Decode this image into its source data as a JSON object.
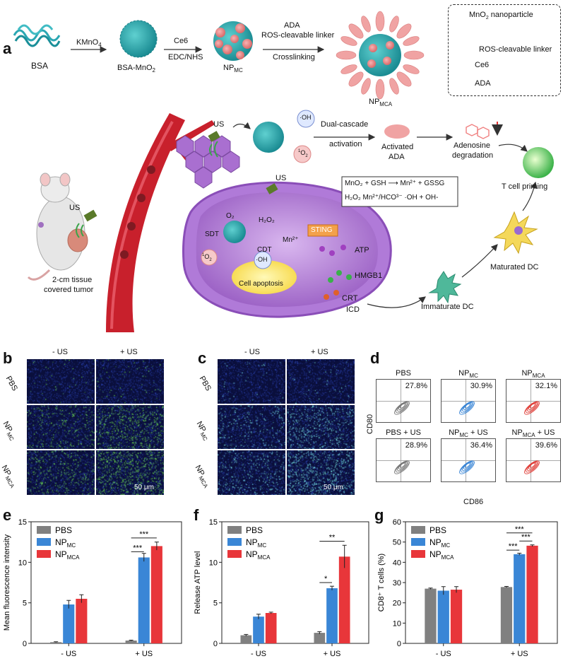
{
  "panels": {
    "a": "a",
    "b": "b",
    "c": "c",
    "d": "d",
    "e": "e",
    "f": "f",
    "g": "g"
  },
  "scheme": {
    "bsa": "BSA",
    "kmno4": "KMnO",
    "kmno4_sub": "4",
    "bsa_mno2": "BSA-MnO",
    "bsa_mno2_sub": "2",
    "ce6": "Ce6",
    "edc_nhs": "EDC/NHS",
    "np": "NP",
    "np_mc_sub": "MC",
    "np_mca_sub": "MCA",
    "ada": "ADA",
    "ros_linker": "ROS-cleavable linker",
    "crosslinking": "Crosslinking",
    "legend_mno2": "MnO",
    "legend_mno2_tail": " nanoparticle",
    "legend_linker": "ROS-cleavable linker",
    "legend_ce6": "Ce6",
    "legend_ada": "ADA",
    "us": "US",
    "oh": "·OH",
    "singlet_o2": "O",
    "dual_cascade": "Dual-cascade",
    "activation": "activation",
    "activated": "Activated",
    "adenosine": "Adenosine",
    "degradation": "degradation",
    "t_cell": "T cell priming",
    "eq1": "MnO₂ + GSH ⟶ Mn²⁺ + GSSG",
    "eq2": "H₂O₂  Mn²⁺/HCO³⁻ ·OH + OH-",
    "o2": "O₂",
    "h2o2": "H₂O₂",
    "sdt": "SDT",
    "cdt": "CDT",
    "mn2": "Mn²⁺",
    "sting": "STING",
    "atp": "ATP",
    "hmgb1": "HMGB1",
    "crt": "CRT",
    "icd": "ICD",
    "apoptosis": "Cell apoptosis",
    "matured_dc": "Maturated DC",
    "immature_dc": "Immaturate DC",
    "tissue1": "2-cm tissue",
    "tissue2": "covered tumor"
  },
  "micro_b": {
    "col1": "- US",
    "col2": "+ US",
    "rows": [
      "PBS",
      "NP",
      "NP"
    ],
    "row_subs": [
      "",
      "MC",
      "MCA"
    ],
    "scale": "50 μm"
  },
  "micro_c": {
    "col1": "- US",
    "col2": "+ US",
    "rows": [
      "PBS",
      "NP",
      "NP"
    ],
    "row_subs": [
      "",
      "MC",
      "MCA"
    ],
    "scale": "50 μm"
  },
  "flow": {
    "ylabel": "CD80",
    "xlabel": "CD86",
    "cells": [
      {
        "title": "PBS",
        "sub": "",
        "tail": "",
        "pct": "27.8%",
        "color": "#777777"
      },
      {
        "title": "NP",
        "sub": "MC",
        "tail": "",
        "pct": "30.9%",
        "color": "#3a86d6"
      },
      {
        "title": "NP",
        "sub": "MCA",
        "tail": "",
        "pct": "32.1%",
        "color": "#e0403a"
      },
      {
        "title": "PBS + US",
        "sub": "",
        "tail": "",
        "pct": "28.9%",
        "color": "#777777"
      },
      {
        "title": "NP",
        "sub": "MC",
        "tail": " + US",
        "pct": "36.4%",
        "color": "#3a86d6"
      },
      {
        "title": "NP",
        "sub": "MCA",
        "tail": " + US",
        "pct": "39.6%",
        "color": "#e0403a"
      }
    ]
  },
  "chart_data": [
    {
      "type": "bar",
      "panel": "e",
      "categories": [
        "- US",
        "+ US"
      ],
      "ylabel": "Mean fluorescence intensity",
      "ylim": [
        0,
        15
      ],
      "yticks": [
        0,
        5,
        10,
        15
      ],
      "series": [
        {
          "name": "PBS",
          "color": "#808080",
          "values": [
            0.15,
            0.35
          ],
          "errors": [
            0.05,
            0.05
          ]
        },
        {
          "name": "NP",
          "name_sub": "MC",
          "color": "#3a86d6",
          "values": [
            4.8,
            10.6
          ],
          "errors": [
            0.5,
            0.5
          ]
        },
        {
          "name": "NP",
          "name_sub": "MCA",
          "color": "#e8363a",
          "values": [
            5.5,
            12.0
          ],
          "errors": [
            0.5,
            0.5
          ]
        }
      ],
      "significance": [
        {
          "label": "***",
          "from": [
            1,
            0
          ],
          "to": [
            1,
            1
          ],
          "y": 11.3
        },
        {
          "label": "***",
          "from": [
            1,
            0
          ],
          "to": [
            1,
            2
          ],
          "y": 13.0
        }
      ]
    },
    {
      "type": "bar",
      "panel": "f",
      "categories": [
        "- US",
        "+ US"
      ],
      "ylabel": "Release ATP level",
      "ylim": [
        0,
        15
      ],
      "yticks": [
        0,
        5,
        10,
        15
      ],
      "series": [
        {
          "name": "PBS",
          "color": "#808080",
          "values": [
            1.0,
            1.3
          ],
          "errors": [
            0.1,
            0.15
          ]
        },
        {
          "name": "NP",
          "name_sub": "MC",
          "color": "#3a86d6",
          "values": [
            3.3,
            6.8
          ],
          "errors": [
            0.3,
            0.25
          ]
        },
        {
          "name": "NP",
          "name_sub": "MCA",
          "color": "#e8363a",
          "values": [
            3.75,
            10.7
          ],
          "errors": [
            0.1,
            1.4
          ]
        }
      ],
      "significance": [
        {
          "label": "*",
          "from": [
            1,
            0
          ],
          "to": [
            1,
            1
          ],
          "y": 7.5
        },
        {
          "label": "**",
          "from": [
            1,
            0
          ],
          "to": [
            1,
            2
          ],
          "y": 12.6
        }
      ]
    },
    {
      "type": "bar",
      "panel": "g",
      "categories": [
        "- US",
        "+ US"
      ],
      "ylabel": "CD8⁺ T cells (%)",
      "ylim": [
        0,
        60
      ],
      "yticks": [
        0,
        10,
        20,
        30,
        40,
        50,
        60
      ],
      "series": [
        {
          "name": "PBS",
          "color": "#808080",
          "values": [
            27.0,
            27.8
          ],
          "errors": [
            0.3,
            0.3
          ]
        },
        {
          "name": "NP",
          "name_sub": "MC",
          "color": "#3a86d6",
          "values": [
            26.0,
            44.0
          ],
          "errors": [
            2.0,
            0.5
          ]
        },
        {
          "name": "NP",
          "name_sub": "MCA",
          "color": "#e8363a",
          "values": [
            26.5,
            48.2
          ],
          "errors": [
            1.5,
            0.4
          ]
        }
      ],
      "significance": [
        {
          "label": "***",
          "from": [
            1,
            0
          ],
          "to": [
            1,
            1
          ],
          "y": 46.0
        },
        {
          "label": "***",
          "from": [
            1,
            1
          ],
          "to": [
            1,
            2
          ],
          "y": 50.5
        },
        {
          "label": "***",
          "from": [
            1,
            0
          ],
          "to": [
            1,
            2
          ],
          "y": 54.5
        }
      ]
    }
  ]
}
